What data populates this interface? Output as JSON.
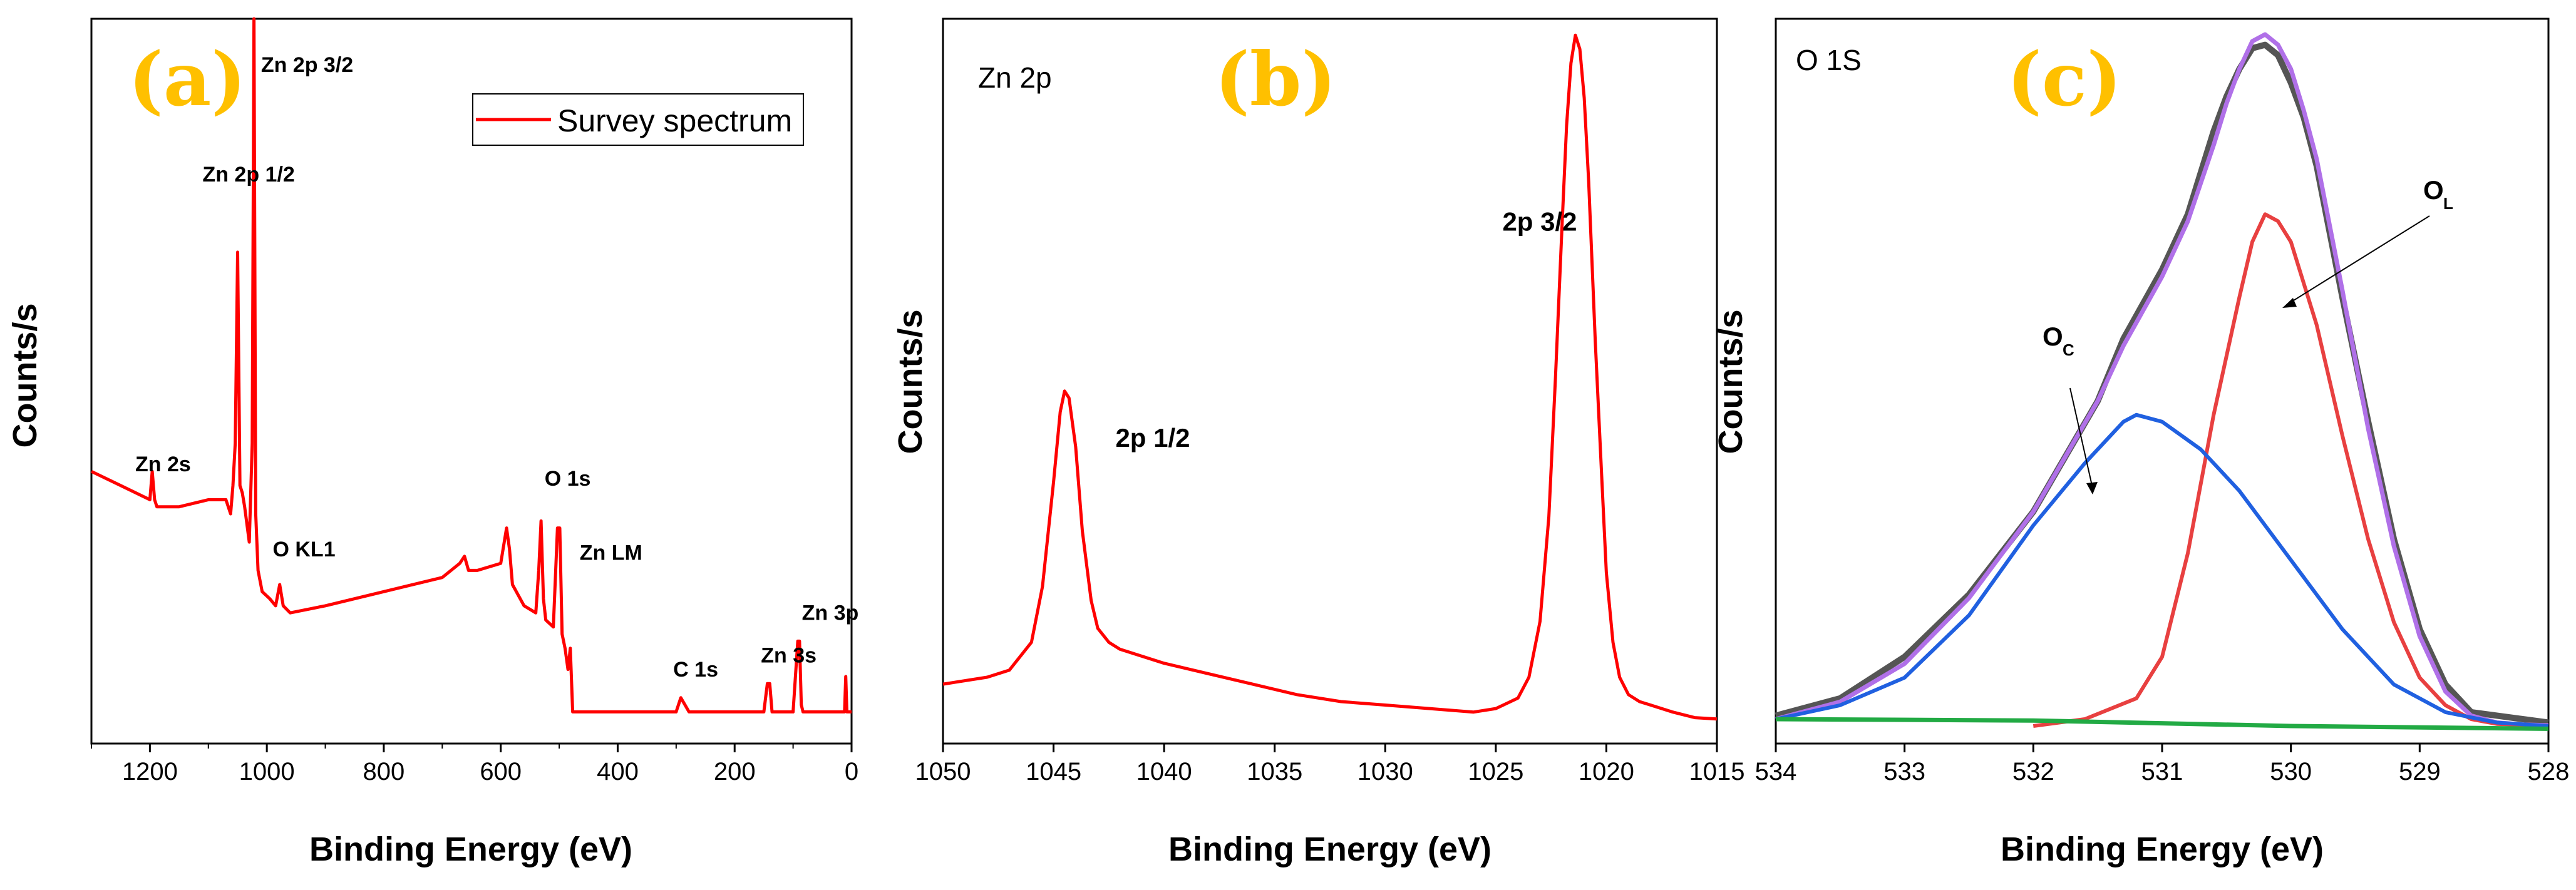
{
  "chart_data": [
    {
      "type": "line",
      "panel_label": "(a)",
      "title": "",
      "xlabel": "Binding Energy (eV)",
      "ylabel": "Counts/s",
      "xlim": [
        1300,
        0
      ],
      "x_ticks": [
        "1200",
        "1000",
        "800",
        "600",
        "400",
        "200",
        "0"
      ],
      "legend": "Survey spectrum",
      "series": [
        {
          "name": "Survey spectrum",
          "color": "#FF0000",
          "x": [
            1300,
            1250,
            1200,
            1196,
            1192,
            1188,
            1150,
            1100,
            1070,
            1062,
            1058,
            1054,
            1050,
            1046,
            1042,
            1038,
            1030,
            1025,
            1022,
            1019,
            1015,
            1008,
            995,
            985,
            978,
            972,
            960,
            900,
            800,
            700,
            670,
            662,
            655,
            640,
            600,
            590,
            585,
            580,
            560,
            540,
            535,
            531,
            527,
            523,
            510,
            503,
            499,
            495,
            490,
            485,
            481,
            477,
            470,
            400,
            300,
            292,
            285,
            278,
            200,
            150,
            144,
            140,
            136,
            120,
            100,
            92,
            89,
            86,
            83,
            70,
            20,
            12,
            10,
            8,
            5,
            0
          ],
          "y": [
            0.36,
            0.34,
            0.32,
            0.36,
            0.32,
            0.31,
            0.31,
            0.32,
            0.32,
            0.3,
            0.34,
            0.4,
            0.67,
            0.34,
            0.33,
            0.31,
            0.26,
            0.4,
            1.0,
            0.3,
            0.22,
            0.19,
            0.18,
            0.17,
            0.2,
            0.17,
            0.16,
            0.17,
            0.19,
            0.21,
            0.23,
            0.24,
            0.22,
            0.22,
            0.23,
            0.28,
            0.25,
            0.2,
            0.17,
            0.16,
            0.22,
            0.29,
            0.18,
            0.15,
            0.14,
            0.28,
            0.28,
            0.13,
            0.11,
            0.08,
            0.11,
            0.02,
            0.02,
            0.02,
            0.02,
            0.04,
            0.03,
            0.02,
            0.02,
            0.02,
            0.06,
            0.06,
            0.02,
            0.02,
            0.02,
            0.12,
            0.12,
            0.03,
            0.02,
            0.02,
            0.02,
            0.02,
            0.07,
            0.02,
            0.02,
            0.02
          ]
        }
      ],
      "annotations": [
        {
          "text": "Zn 2p 3/2",
          "x": 1010,
          "y": 0.925
        },
        {
          "text": "Zn 2p 1/2",
          "x": 1110,
          "y": 0.77
        },
        {
          "text": "Zn 2s",
          "x": 1225,
          "y": 0.36
        },
        {
          "text": "O KL1",
          "x": 990,
          "y": 0.24
        },
        {
          "text": "O 1s",
          "x": 525,
          "y": 0.34
        },
        {
          "text": "Zn LM",
          "x": 465,
          "y": 0.235
        },
        {
          "text": "C 1s",
          "x": 305,
          "y": 0.07
        },
        {
          "text": "Zn  3s",
          "x": 155,
          "y": 0.09
        },
        {
          "text": "Zn 3p",
          "x": 85,
          "y": 0.15
        }
      ]
    },
    {
      "type": "line",
      "panel_label": "(b)",
      "title": "Zn 2p",
      "xlabel": "Binding Energy (eV)",
      "ylabel": "Counts/s",
      "xlim": [
        1050,
        1015
      ],
      "x_ticks": [
        "1050",
        "1045",
        "1040",
        "1035",
        "1030",
        "1025",
        "1020",
        "1015"
      ],
      "series": [
        {
          "name": "Zn 2p",
          "color": "#FF0000",
          "x": [
            1050,
            1048,
            1047,
            1046,
            1045.5,
            1045,
            1044.7,
            1044.5,
            1044.3,
            1044,
            1043.7,
            1043.3,
            1043,
            1042.5,
            1042,
            1041,
            1040,
            1038,
            1036,
            1034,
            1032,
            1030,
            1028,
            1026,
            1025,
            1024,
            1023.5,
            1023,
            1022.6,
            1022.3,
            1022,
            1021.8,
            1021.6,
            1021.4,
            1021.2,
            1021,
            1020.8,
            1020.5,
            1020.2,
            1020,
            1019.7,
            1019.4,
            1019,
            1018.5,
            1018,
            1017,
            1016,
            1015
          ],
          "y": [
            0.06,
            0.07,
            0.08,
            0.12,
            0.2,
            0.35,
            0.45,
            0.48,
            0.47,
            0.4,
            0.28,
            0.18,
            0.14,
            0.12,
            0.11,
            0.1,
            0.09,
            0.075,
            0.06,
            0.045,
            0.035,
            0.03,
            0.025,
            0.02,
            0.025,
            0.04,
            0.07,
            0.15,
            0.3,
            0.5,
            0.72,
            0.86,
            0.95,
            0.99,
            0.97,
            0.9,
            0.78,
            0.55,
            0.35,
            0.22,
            0.12,
            0.07,
            0.045,
            0.035,
            0.03,
            0.02,
            0.012,
            0.01
          ]
        }
      ],
      "annotations": [
        {
          "text": "2p 1/2",
          "x": 1042.2,
          "y": 0.4
        },
        {
          "text": "2p 3/2",
          "x": 1024.7,
          "y": 0.71
        }
      ]
    },
    {
      "type": "line",
      "panel_label": "(c)",
      "title": "O 1S",
      "xlabel": "Binding Energy (eV)",
      "ylabel": "Counts/s",
      "xlim": [
        534,
        528
      ],
      "x_ticks": [
        "534",
        "533",
        "532",
        "531",
        "530",
        "529",
        "528"
      ],
      "annotations": [
        {
          "text": "O",
          "sub": "C",
          "x": 531.9,
          "y": 0.58
        },
        {
          "text": "O",
          "sub": "L",
          "x": 529.1,
          "y": 0.79
        }
      ],
      "series": [
        {
          "name": "raw",
          "color": "#555555",
          "x": [
            534,
            533.5,
            533,
            532.5,
            532,
            531.5,
            531.3,
            531,
            530.8,
            530.6,
            530.5,
            530.4,
            530.3,
            530.2,
            530.1,
            530,
            529.9,
            529.8,
            529.6,
            529.4,
            529.2,
            529,
            528.8,
            528.6,
            528.4,
            528.2,
            528
          ],
          "y": [
            0.015,
            0.04,
            0.1,
            0.19,
            0.31,
            0.47,
            0.56,
            0.66,
            0.74,
            0.86,
            0.91,
            0.95,
            0.98,
            0.985,
            0.97,
            0.93,
            0.88,
            0.81,
            0.62,
            0.44,
            0.27,
            0.14,
            0.06,
            0.02,
            0.015,
            0.01,
            0.005
          ]
        },
        {
          "name": "fit",
          "color": "#B070E8",
          "x": [
            534,
            533.5,
            533,
            532.5,
            532,
            531.5,
            531.3,
            531,
            530.8,
            530.6,
            530.5,
            530.4,
            530.3,
            530.2,
            530.1,
            530,
            529.9,
            529.8,
            529.6,
            529.4,
            529.2,
            529,
            528.8,
            528.6,
            528.4,
            528.2,
            528
          ],
          "y": [
            0.01,
            0.035,
            0.09,
            0.185,
            0.31,
            0.47,
            0.55,
            0.65,
            0.73,
            0.84,
            0.9,
            0.95,
            0.99,
            1.0,
            0.985,
            0.95,
            0.89,
            0.82,
            0.63,
            0.43,
            0.26,
            0.13,
            0.05,
            0.015,
            0.005,
            0.002,
            0.001
          ]
        },
        {
          "name": "O_L",
          "color": "#E84040",
          "x": [
            532,
            531.6,
            531.2,
            531,
            530.8,
            530.6,
            530.4,
            530.3,
            530.2,
            530.1,
            530,
            529.8,
            529.6,
            529.4,
            529.2,
            529,
            528.8,
            528.6,
            528.4,
            528
          ],
          "y": [
            0.0,
            0.01,
            0.04,
            0.1,
            0.25,
            0.45,
            0.62,
            0.7,
            0.74,
            0.73,
            0.7,
            0.58,
            0.42,
            0.27,
            0.15,
            0.07,
            0.03,
            0.01,
            0.003,
            0.0
          ]
        },
        {
          "name": "O_C",
          "color": "#2060E0",
          "x": [
            534,
            533.5,
            533,
            532.5,
            532,
            531.6,
            531.3,
            531.2,
            531,
            530.7,
            530.4,
            530,
            529.6,
            529.2,
            528.8,
            528.4,
            528
          ],
          "y": [
            0.01,
            0.03,
            0.07,
            0.16,
            0.29,
            0.38,
            0.44,
            0.45,
            0.44,
            0.4,
            0.34,
            0.24,
            0.14,
            0.06,
            0.02,
            0.005,
            0.0
          ]
        },
        {
          "name": "baseline",
          "color": "#22AA44",
          "x": [
            534,
            532,
            530,
            528
          ],
          "y": [
            0.01,
            0.008,
            0.0,
            -0.004
          ]
        }
      ]
    }
  ]
}
